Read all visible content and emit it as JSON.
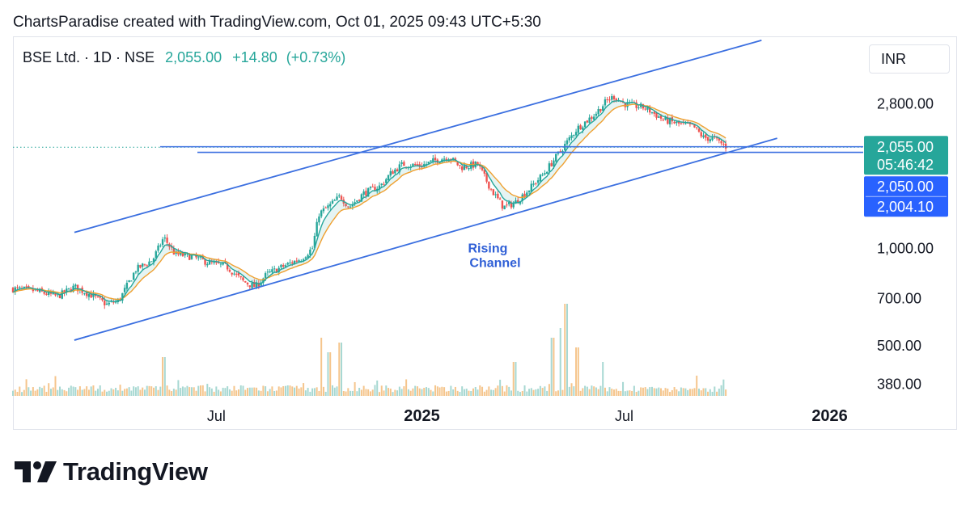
{
  "header": {
    "attribution": "ChartsParadise created with TradingView.com, Oct 01, 2025 09:43 UTC+5:30"
  },
  "legend": {
    "symbol": "BSE Ltd. · 1D · NSE",
    "price": "2,055.00",
    "change": "+14.80",
    "change_pct": "(+0.73%)"
  },
  "currency": "INR",
  "brand": {
    "name": "TradingView"
  },
  "colors": {
    "channel": "#3b6fe0",
    "up": "#26a69a",
    "down": "#ef5350",
    "ema_fast": "#26a69a",
    "ema_slow": "#f0a030",
    "price_label_bg": "#26a69a",
    "level_label_bg": "#2962ff"
  },
  "chart_data": {
    "type": "candlestick",
    "y_scale": "log",
    "ylim": [
      330,
      4500
    ],
    "y_ticks": [
      {
        "value": 2800,
        "label": "2,800.00"
      },
      {
        "value": 1000,
        "label": "1,000.00"
      },
      {
        "value": 700,
        "label": "700.00"
      },
      {
        "value": 500,
        "label": "500.00"
      },
      {
        "value": 380,
        "label": "380.00"
      }
    ],
    "x_ticks": [
      {
        "date": "2024-07-01",
        "label": "Jul",
        "bold": false
      },
      {
        "date": "2025-01-01",
        "label": "2025",
        "bold": true
      },
      {
        "date": "2025-07-01",
        "label": "Jul",
        "bold": false
      },
      {
        "date": "2026-01-01",
        "label": "2026",
        "bold": true
      }
    ],
    "xlim": [
      "2024-01-01",
      "2026-01-31"
    ],
    "price_keypoints": [
      [
        "2024-01-01",
        750
      ],
      [
        "2024-01-20",
        740
      ],
      [
        "2024-02-10",
        710
      ],
      [
        "2024-02-25",
        760
      ],
      [
        "2024-03-10",
        720
      ],
      [
        "2024-03-25",
        670
      ],
      [
        "2024-04-05",
        690
      ],
      [
        "2024-04-20",
        860
      ],
      [
        "2024-05-05",
        920
      ],
      [
        "2024-05-15",
        1080
      ],
      [
        "2024-05-25",
        960
      ],
      [
        "2024-06-10",
        940
      ],
      [
        "2024-06-25",
        900
      ],
      [
        "2024-07-10",
        880
      ],
      [
        "2024-07-25",
        790
      ],
      [
        "2024-08-05",
        760
      ],
      [
        "2024-08-15",
        830
      ],
      [
        "2024-08-30",
        880
      ],
      [
        "2024-09-15",
        930
      ],
      [
        "2024-09-25",
        1000
      ],
      [
        "2024-10-01",
        1280
      ],
      [
        "2024-10-10",
        1350
      ],
      [
        "2024-10-20",
        1450
      ],
      [
        "2024-10-28",
        1340
      ],
      [
        "2024-11-10",
        1480
      ],
      [
        "2024-11-25",
        1560
      ],
      [
        "2024-12-05",
        1720
      ],
      [
        "2024-12-15",
        1820
      ],
      [
        "2024-12-31",
        1800
      ],
      [
        "2025-01-15",
        1880
      ],
      [
        "2025-01-25",
        1920
      ],
      [
        "2025-02-05",
        1780
      ],
      [
        "2025-02-20",
        1820
      ],
      [
        "2025-03-05",
        1500
      ],
      [
        "2025-03-15",
        1340
      ],
      [
        "2025-03-25",
        1380
      ],
      [
        "2025-04-05",
        1500
      ],
      [
        "2025-04-20",
        1700
      ],
      [
        "2025-05-05",
        2000
      ],
      [
        "2025-05-20",
        2350
      ],
      [
        "2025-06-05",
        2600
      ],
      [
        "2025-06-15",
        2850
      ],
      [
        "2025-06-22",
        2950
      ],
      [
        "2025-07-01",
        2800
      ],
      [
        "2025-07-20",
        2720
      ],
      [
        "2025-08-05",
        2500
      ],
      [
        "2025-08-20",
        2420
      ],
      [
        "2025-09-01",
        2380
      ],
      [
        "2025-09-10",
        2200
      ],
      [
        "2025-09-20",
        2180
      ],
      [
        "2025-10-01",
        2055
      ]
    ],
    "volume_spikes": [
      [
        "2024-05-15",
        0.4
      ],
      [
        "2024-10-03",
        0.6
      ],
      [
        "2024-10-10",
        0.45
      ],
      [
        "2024-10-20",
        0.55
      ],
      [
        "2025-03-25",
        0.35
      ],
      [
        "2025-04-28",
        0.6
      ],
      [
        "2025-05-05",
        0.7
      ],
      [
        "2025-05-10",
        0.95
      ],
      [
        "2025-05-20",
        0.5
      ],
      [
        "2025-06-12",
        0.35
      ]
    ],
    "channel": {
      "upper": [
        [
          "2024-02-25",
          1120
        ],
        [
          "2025-11-01",
          4400
        ]
      ],
      "lower": [
        [
          "2024-02-25",
          520
        ],
        [
          "2025-11-15",
          2190
        ]
      ]
    },
    "horizontal_levels": [
      {
        "value": 2050,
        "label": "2,050.00"
      },
      {
        "value": 2004.1,
        "label": "2,004.10"
      }
    ],
    "last_price": {
      "value": 2055,
      "label": "2,055.00",
      "countdown": "05:46:42"
    },
    "annotation": {
      "text_line1": "Rising",
      "text_line2": "Channel",
      "date": "2025-03-01",
      "price": 960
    }
  }
}
